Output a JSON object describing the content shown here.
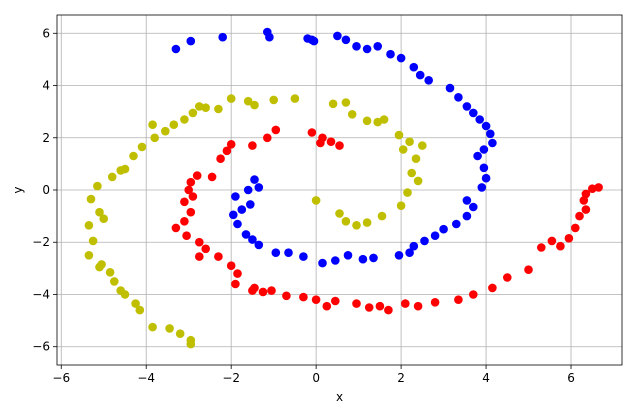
{
  "chart_data": {
    "type": "scatter",
    "title": "",
    "xlabel": "x",
    "ylabel": "y",
    "xlim": [
      -6.1,
      7.2
    ],
    "ylim": [
      -6.7,
      6.7
    ],
    "xticks": [
      -6,
      -4,
      -2,
      0,
      2,
      4,
      6
    ],
    "yticks": [
      -6,
      -4,
      -2,
      0,
      2,
      4,
      6
    ],
    "grid": true,
    "series": [
      {
        "color": "#0000ff",
        "points": [
          [
            -3.3,
            5.4
          ],
          [
            -2.95,
            5.7
          ],
          [
            -2.2,
            5.85
          ],
          [
            -1.15,
            6.05
          ],
          [
            -1.1,
            5.85
          ],
          [
            -0.2,
            5.8
          ],
          [
            -0.05,
            5.7
          ],
          [
            0.5,
            5.9
          ],
          [
            0.7,
            5.75
          ],
          [
            0.95,
            5.5
          ],
          [
            1.2,
            5.4
          ],
          [
            1.45,
            5.5
          ],
          [
            1.75,
            5.2
          ],
          [
            2.0,
            5.05
          ],
          [
            2.3,
            4.7
          ],
          [
            2.45,
            4.4
          ],
          [
            2.65,
            4.2
          ],
          [
            3.15,
            3.9
          ],
          [
            3.35,
            3.55
          ],
          [
            3.55,
            3.2
          ],
          [
            3.7,
            2.95
          ],
          [
            3.85,
            2.7
          ],
          [
            4.0,
            2.45
          ],
          [
            4.1,
            2.15
          ],
          [
            4.15,
            1.8
          ],
          [
            3.95,
            1.55
          ],
          [
            3.8,
            1.3
          ],
          [
            3.95,
            0.85
          ],
          [
            4.0,
            0.45
          ],
          [
            3.9,
            0.1
          ],
          [
            3.55,
            -0.4
          ],
          [
            3.7,
            -0.65
          ],
          [
            3.55,
            -1.0
          ],
          [
            3.3,
            -1.3
          ],
          [
            3.0,
            -1.5
          ],
          [
            2.8,
            -1.75
          ],
          [
            2.55,
            -1.95
          ],
          [
            2.3,
            -2.15
          ],
          [
            2.2,
            -2.4
          ],
          [
            1.95,
            -2.5
          ],
          [
            1.35,
            -2.6
          ],
          [
            1.1,
            -2.65
          ],
          [
            0.75,
            -2.5
          ],
          [
            0.45,
            -2.7
          ],
          [
            0.15,
            -2.8
          ],
          [
            -0.3,
            -2.55
          ],
          [
            -0.65,
            -2.4
          ],
          [
            -0.95,
            -2.4
          ],
          [
            -1.35,
            -2.1
          ],
          [
            -1.5,
            -1.9
          ],
          [
            -1.65,
            -1.7
          ],
          [
            -1.85,
            -1.3
          ],
          [
            -1.95,
            -0.95
          ],
          [
            -1.75,
            -0.75
          ],
          [
            -1.55,
            -0.55
          ],
          [
            -1.6,
            0.0
          ],
          [
            -1.45,
            0.4
          ],
          [
            -1.9,
            -0.25
          ],
          [
            -1.35,
            0.1
          ],
          [
            -0.1,
            5.75
          ]
        ]
      },
      {
        "color": "#ff0000",
        "points": [
          [
            -0.1,
            2.2
          ],
          [
            0.15,
            2.0
          ],
          [
            0.35,
            1.85
          ],
          [
            0.55,
            1.7
          ],
          [
            0.1,
            1.8
          ],
          [
            -0.95,
            2.3
          ],
          [
            -1.15,
            2.0
          ],
          [
            -1.5,
            1.7
          ],
          [
            -2.0,
            1.75
          ],
          [
            -2.1,
            1.5
          ],
          [
            -2.25,
            1.2
          ],
          [
            -2.8,
            0.55
          ],
          [
            -2.95,
            0.3
          ],
          [
            -3.0,
            0.0
          ],
          [
            -2.9,
            -0.25
          ],
          [
            -3.1,
            -0.45
          ],
          [
            -2.95,
            -0.85
          ],
          [
            -3.1,
            -1.2
          ],
          [
            -3.3,
            -1.45
          ],
          [
            -3.05,
            -1.75
          ],
          [
            -2.75,
            -2.0
          ],
          [
            -2.6,
            -2.25
          ],
          [
            -2.75,
            -2.55
          ],
          [
            -2.3,
            -2.55
          ],
          [
            -2.0,
            -2.9
          ],
          [
            -1.85,
            -3.2
          ],
          [
            -1.9,
            -3.6
          ],
          [
            -1.45,
            -3.75
          ],
          [
            -1.25,
            -3.9
          ],
          [
            -1.05,
            -3.85
          ],
          [
            -0.7,
            -4.05
          ],
          [
            -0.3,
            -4.1
          ],
          [
            0.0,
            -4.2
          ],
          [
            0.25,
            -4.45
          ],
          [
            0.45,
            -4.25
          ],
          [
            0.95,
            -4.35
          ],
          [
            1.25,
            -4.5
          ],
          [
            1.5,
            -4.45
          ],
          [
            1.7,
            -4.6
          ],
          [
            2.1,
            -4.35
          ],
          [
            2.4,
            -4.45
          ],
          [
            2.8,
            -4.3
          ],
          [
            3.35,
            -4.2
          ],
          [
            3.7,
            -4.0
          ],
          [
            4.15,
            -3.75
          ],
          [
            4.5,
            -3.35
          ],
          [
            5.0,
            -3.05
          ],
          [
            5.3,
            -2.2
          ],
          [
            5.55,
            -1.95
          ],
          [
            5.75,
            -2.15
          ],
          [
            5.95,
            -1.85
          ],
          [
            6.1,
            -1.45
          ],
          [
            6.2,
            -1.0
          ],
          [
            6.35,
            -0.75
          ],
          [
            6.3,
            -0.4
          ],
          [
            6.35,
            -0.15
          ],
          [
            6.5,
            0.05
          ],
          [
            6.65,
            0.1
          ],
          [
            -2.45,
            0.5
          ],
          [
            -1.5,
            -3.85
          ]
        ]
      },
      {
        "color": "#bfbf00",
        "points": [
          [
            0.4,
            3.3
          ],
          [
            0.7,
            3.35
          ],
          [
            0.85,
            2.9
          ],
          [
            1.2,
            2.65
          ],
          [
            1.45,
            2.6
          ],
          [
            1.95,
            2.1
          ],
          [
            2.2,
            1.85
          ],
          [
            2.05,
            1.55
          ],
          [
            2.35,
            1.2
          ],
          [
            2.25,
            0.65
          ],
          [
            2.4,
            0.35
          ],
          [
            2.15,
            -0.1
          ],
          [
            2.0,
            -0.6
          ],
          [
            1.55,
            -1.0
          ],
          [
            1.2,
            -1.25
          ],
          [
            0.95,
            -1.35
          ],
          [
            0.7,
            -1.2
          ],
          [
            0.55,
            -0.9
          ],
          [
            0.0,
            -0.4
          ],
          [
            -0.5,
            3.5
          ],
          [
            -1.0,
            3.45
          ],
          [
            -1.45,
            3.25
          ],
          [
            -2.0,
            3.5
          ],
          [
            -2.3,
            3.1
          ],
          [
            -2.6,
            3.15
          ],
          [
            -2.9,
            2.95
          ],
          [
            -3.1,
            2.7
          ],
          [
            -3.35,
            2.5
          ],
          [
            -3.55,
            2.25
          ],
          [
            -3.8,
            2.0
          ],
          [
            -4.1,
            1.65
          ],
          [
            -4.3,
            1.3
          ],
          [
            -4.5,
            0.8
          ],
          [
            -4.8,
            0.5
          ],
          [
            -5.15,
            0.15
          ],
          [
            -5.3,
            -0.35
          ],
          [
            -5.1,
            -0.85
          ],
          [
            -5.35,
            -1.35
          ],
          [
            -5.25,
            -1.95
          ],
          [
            -5.35,
            -2.5
          ],
          [
            -5.1,
            -2.95
          ],
          [
            -4.85,
            -3.15
          ],
          [
            -4.75,
            -3.5
          ],
          [
            -4.5,
            -4.0
          ],
          [
            -4.25,
            -4.35
          ],
          [
            -4.15,
            -4.6
          ],
          [
            -3.85,
            -5.25
          ],
          [
            -3.45,
            -5.3
          ],
          [
            -3.2,
            -5.5
          ],
          [
            -2.95,
            -5.75
          ],
          [
            -2.95,
            -5.9
          ],
          [
            -4.6,
            -3.85
          ],
          [
            -5.05,
            -2.85
          ],
          [
            -5.0,
            -1.1
          ],
          [
            -4.6,
            0.75
          ],
          [
            -3.85,
            2.5
          ],
          [
            -2.75,
            3.2
          ],
          [
            -1.6,
            3.4
          ],
          [
            1.6,
            2.7
          ],
          [
            2.5,
            1.7
          ]
        ]
      }
    ]
  }
}
